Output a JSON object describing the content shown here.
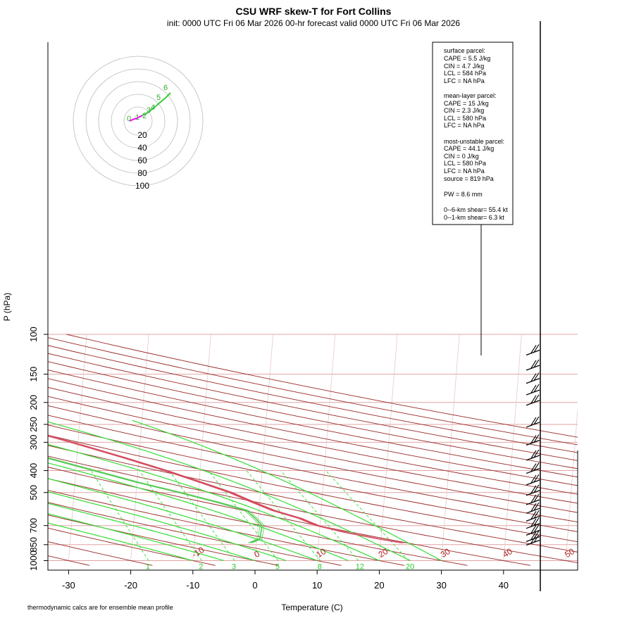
{
  "chart_data": {
    "type": "skew-t",
    "title": "CSU WRF skew-T for Fort Collins",
    "subtitle": "init: 0000 UTC Fri 06 Mar 2026    00-hr forecast valid 0000 UTC Fri 06 Mar 2026",
    "xlabel": "Temperature (C)",
    "ylabel": "P (hPa)",
    "footnote": "thermodynamic calcs are for ensemble mean profile",
    "x_ticks": [
      -30,
      -20,
      -10,
      0,
      10,
      20,
      30,
      40
    ],
    "x_tick_labels": [
      "-30",
      "-20",
      "-10",
      "0",
      "10",
      "20",
      "30",
      "40"
    ],
    "p_ticks": [
      100,
      150,
      200,
      250,
      300,
      400,
      500,
      700,
      850,
      1000
    ],
    "p_tick_labels": [
      "100",
      "150",
      "200",
      "250",
      "300",
      "400",
      "500",
      "700",
      "850",
      "1000"
    ],
    "xlim": [
      -33,
      45
    ],
    "plim": [
      1000,
      100
    ],
    "grid": true,
    "isotherm_labels": [
      {
        "t": -10,
        "text": "-10"
      },
      {
        "t": 0,
        "text": "0"
      },
      {
        "t": 10,
        "text": "10"
      },
      {
        "t": 20,
        "text": "20"
      },
      {
        "t": 30,
        "text": "30"
      },
      {
        "t": 40,
        "text": "40"
      },
      {
        "t": 50,
        "text": "50"
      }
    ],
    "mixing_ratios": [
      1,
      2,
      3,
      5,
      8,
      12,
      20
    ],
    "mixing_ratio_labels": [
      "1",
      "2",
      "3",
      "5",
      "8",
      "12",
      "20"
    ],
    "temperature_profile": [
      {
        "p": 835,
        "t": 23.5
      },
      {
        "p": 800,
        "t": 19.5
      },
      {
        "p": 750,
        "t": 14.2
      },
      {
        "p": 700,
        "t": 9.6
      },
      {
        "p": 650,
        "t": 6.7
      },
      {
        "p": 600,
        "t": 2.3
      },
      {
        "p": 550,
        "t": -1.2
      },
      {
        "p": 500,
        "t": -4.8
      },
      {
        "p": 450,
        "t": -9.8
      },
      {
        "p": 400,
        "t": -15.5
      },
      {
        "p": 350,
        "t": -22.5
      },
      {
        "p": 300,
        "t": -31.0
      },
      {
        "p": 280,
        "t": -35.0
      },
      {
        "p": 250,
        "t": -40.0
      },
      {
        "p": 200,
        "t": -43.0
      },
      {
        "p": 180,
        "t": -43.5
      },
      {
        "p": 150,
        "t": -47.0
      },
      {
        "p": 120,
        "t": -50.0
      },
      {
        "p": 110,
        "t": -50.5
      }
    ],
    "dewpoint_profile": [
      {
        "p": 835,
        "t": -1.0
      },
      {
        "p": 800,
        "t": 0.5
      },
      {
        "p": 700,
        "t": 0.7
      },
      {
        "p": 650,
        "t": -0.5
      },
      {
        "p": 600,
        "t": -2.0
      },
      {
        "p": 550,
        "t": -7.0
      },
      {
        "p": 500,
        "t": -13.0
      },
      {
        "p": 450,
        "t": -20.0
      },
      {
        "p": 400,
        "t": -27.0
      },
      {
        "p": 350,
        "t": -35.0
      },
      {
        "p": 300,
        "t": -46.0
      },
      {
        "p": 250,
        "t": -56.0
      },
      {
        "p": 215,
        "t": -61.0
      },
      {
        "p": 200,
        "t": -69.0
      },
      {
        "p": 180,
        "t": -78.0
      },
      {
        "p": 160,
        "t": -84.0
      }
    ],
    "surface_parcel": {
      "header": "surface parcel:",
      "cape": "CAPE = 5.5 J/kg",
      "cin": "CIN = 4.7 J/kg",
      "lcl": "LCL = 584 hPa",
      "lfc": "LFC = NA hPa"
    },
    "mean_layer_parcel": {
      "header": "mean-layer parcel:",
      "cape": "CAPE = 15 J/kg",
      "cin": "CIN = 2.3 J/kg",
      "lcl": "LCL = 580 hPa",
      "lfc": "LFC = NA hPa"
    },
    "most_unstable_parcel": {
      "header": "most-unstable parcel:",
      "cape": "CAPE = 44.1 J/kg",
      "cin": "CIN = 0 J/kg",
      "lcl": "LCL = 580 hPa",
      "lfc": "LFC = NA hPa",
      "source": "source = 819 hPa"
    },
    "pw": "PW =  8.6 mm",
    "shear_0_6": "0--6-km shear= 55.4 kt",
    "shear_0_1": "0--1-km shear= 6.3 kt",
    "hodograph": {
      "ring_labels": [
        "20",
        "40",
        "60",
        "80",
        "100"
      ],
      "level_labels": [
        "0",
        "1",
        "2",
        "3",
        "4",
        "5",
        "6"
      ]
    },
    "wind_barb_levels_hpa": [
      120,
      140,
      160,
      180,
      200,
      250,
      300,
      350,
      400,
      450,
      500,
      550,
      600,
      650,
      700,
      750,
      800,
      830
    ]
  }
}
